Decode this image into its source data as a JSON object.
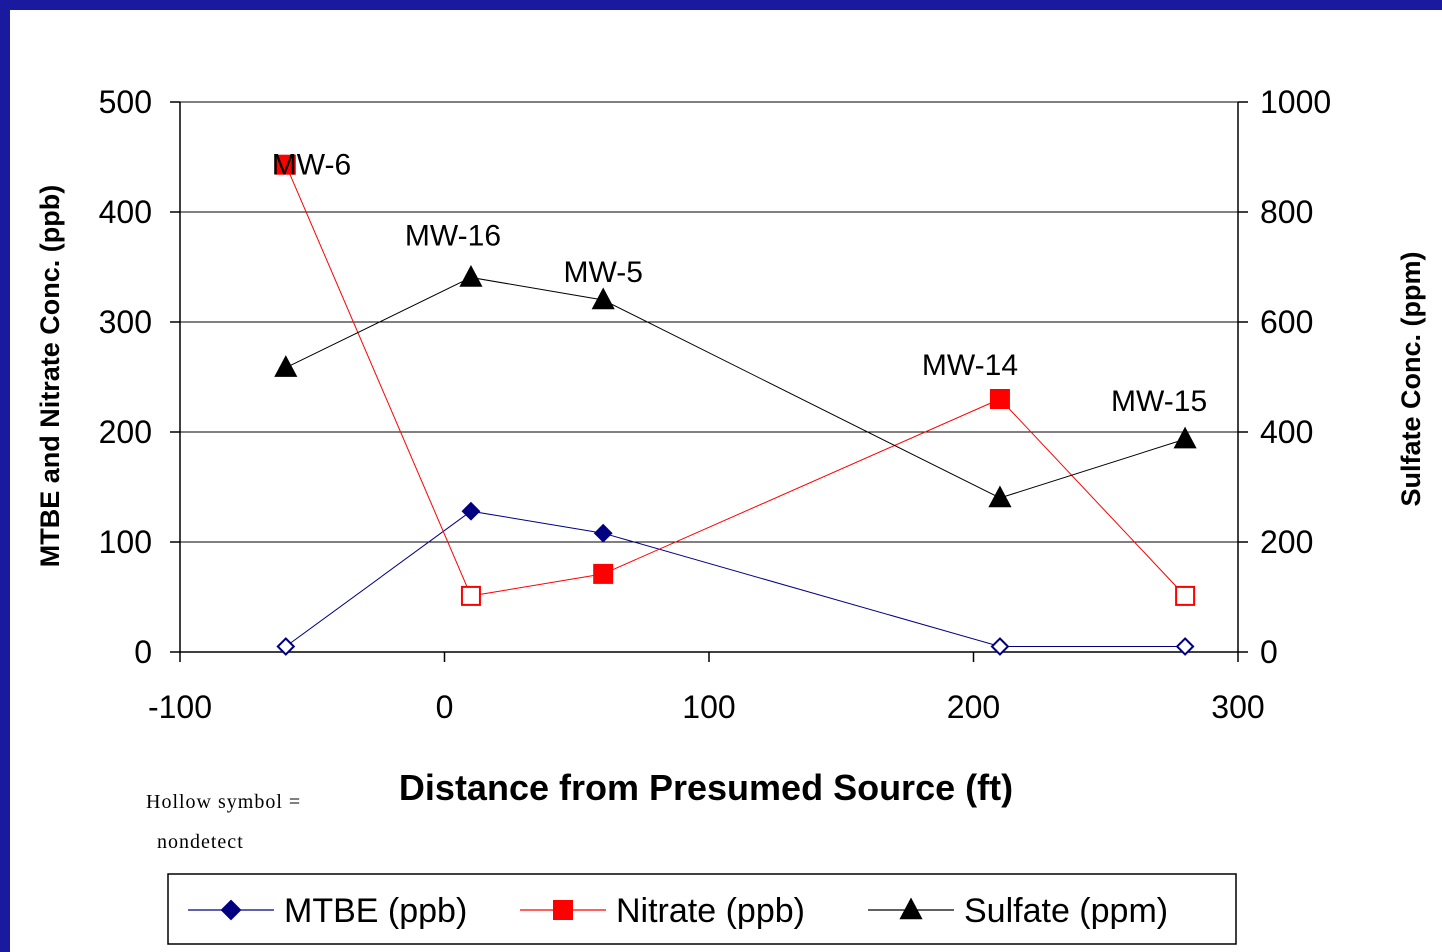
{
  "chart_data": {
    "type": "scatter",
    "xlabel": "Distance from Presumed Source (ft)",
    "ylabel_left": "MTBE and Nitrate Conc. (ppb)",
    "ylabel_right": "Sulfate Conc. (ppm)",
    "xlim": [
      -100,
      300
    ],
    "xticks": [
      -100,
      0,
      100,
      200,
      300
    ],
    "ylim_left": [
      0,
      500
    ],
    "yticks_left": [
      0,
      100,
      200,
      300,
      400,
      500
    ],
    "ylim_right": [
      0,
      1000
    ],
    "yticks_right": [
      0,
      200,
      400,
      600,
      800,
      1000
    ],
    "grid": "horizontal",
    "legend_position": "bottom",
    "series": [
      {
        "name": "MTBE (ppb)",
        "axis": "left",
        "color": "#000080",
        "marker": "diamond",
        "points": [
          {
            "x": -60,
            "y": 5,
            "nondetect": true
          },
          {
            "x": 10,
            "y": 128,
            "nondetect": false
          },
          {
            "x": 60,
            "y": 108,
            "nondetect": false
          },
          {
            "x": 210,
            "y": 5,
            "nondetect": true
          },
          {
            "x": 280,
            "y": 5,
            "nondetect": true
          }
        ]
      },
      {
        "name": "Nitrate (ppb)",
        "axis": "left",
        "color": "#ff0000",
        "marker": "square",
        "points": [
          {
            "x": -60,
            "y": 443,
            "nondetect": false
          },
          {
            "x": 10,
            "y": 51,
            "nondetect": true
          },
          {
            "x": 60,
            "y": 71,
            "nondetect": false
          },
          {
            "x": 210,
            "y": 230,
            "nondetect": false
          },
          {
            "x": 280,
            "y": 51,
            "nondetect": true
          }
        ]
      },
      {
        "name": "Sulfate (ppm)",
        "axis": "right",
        "color": "#000000",
        "marker": "triangle",
        "points": [
          {
            "x": -60,
            "y": 517,
            "nondetect": false
          },
          {
            "x": 10,
            "y": 681,
            "nondetect": false
          },
          {
            "x": 60,
            "y": 640,
            "nondetect": false
          },
          {
            "x": 210,
            "y": 280,
            "nondetect": false
          },
          {
            "x": 280,
            "y": 387,
            "nondetect": false
          }
        ]
      }
    ],
    "annotations": [
      {
        "text": "MW-6",
        "x": -60
      },
      {
        "text": "MW-16",
        "x": 10
      },
      {
        "text": "MW-5",
        "x": 60
      },
      {
        "text": "MW-14",
        "x": 210
      },
      {
        "text": "MW-15",
        "x": 280
      }
    ],
    "note_lines": [
      "Hollow symbol =",
      "nondetect"
    ]
  }
}
